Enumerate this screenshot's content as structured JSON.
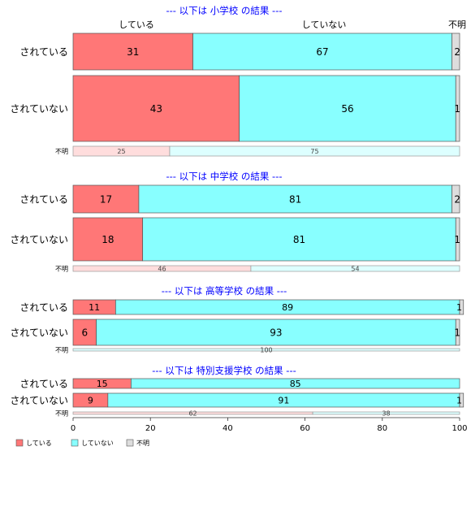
{
  "chart_data": {
    "type": "bar",
    "orientation": "horizontal",
    "stacked": "percent",
    "xlim": [
      0,
      100
    ],
    "x_ticks": [
      "0",
      "20",
      "40",
      "60",
      "80",
      "100"
    ],
    "column_labels": [
      "している",
      "していない",
      "不明"
    ],
    "legend": {
      "position": "bottom-left",
      "entries": [
        {
          "label": "している",
          "color": "#ff7777"
        },
        {
          "label": "していない",
          "color": "#88ffff"
        },
        {
          "label": "不明",
          "color": "#dddddd"
        }
      ]
    },
    "panels": [
      {
        "title": "--- 以下は 小学校 の結果 ---",
        "rows": [
          {
            "label": "されている",
            "values": [
              31,
              67,
              2
            ]
          },
          {
            "label": "されていない",
            "values": [
              43,
              56,
              1
            ]
          },
          {
            "label": "不明",
            "values": [
              25,
              75,
              0
            ]
          }
        ]
      },
      {
        "title": "--- 以下は 中学校 の結果 ---",
        "rows": [
          {
            "label": "されている",
            "values": [
              17,
              81,
              2
            ]
          },
          {
            "label": "されていない",
            "values": [
              18,
              81,
              1
            ]
          },
          {
            "label": "不明",
            "values": [
              46,
              54,
              0
            ]
          }
        ]
      },
      {
        "title": "--- 以下は 高等学校 の結果 ---",
        "rows": [
          {
            "label": "されている",
            "values": [
              11,
              89,
              1
            ]
          },
          {
            "label": "されていない",
            "values": [
              6,
              93,
              1
            ]
          },
          {
            "label": "不明",
            "values": [
              0,
              100,
              0
            ]
          }
        ]
      },
      {
        "title": "--- 以下は 特別支援学校 の結果 ---",
        "rows": [
          {
            "label": "されている",
            "values": [
              15,
              85,
              0
            ]
          },
          {
            "label": "されていない",
            "values": [
              9,
              91,
              1
            ]
          },
          {
            "label": "不明",
            "values": [
              62,
              38,
              0
            ]
          }
        ]
      }
    ]
  }
}
